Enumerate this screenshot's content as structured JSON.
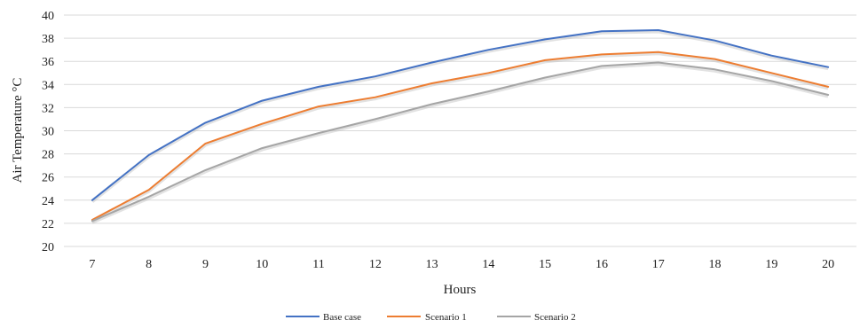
{
  "chart_data": {
    "type": "line",
    "title": "",
    "xlabel": "Hours",
    "ylabel": "Air Temperature °C",
    "x": [
      7,
      8,
      9,
      10,
      11,
      12,
      13,
      14,
      15,
      16,
      17,
      18,
      19,
      20
    ],
    "ylim": [
      20,
      40
    ],
    "yticks": [
      20,
      22,
      24,
      26,
      28,
      30,
      32,
      34,
      36,
      38,
      40
    ],
    "grid": true,
    "legend_position": "bottom",
    "series": [
      {
        "name": "Base case",
        "color": "#4472C4",
        "values": [
          24.0,
          27.9,
          30.7,
          32.6,
          33.8,
          34.7,
          35.9,
          37.0,
          37.9,
          38.6,
          38.7,
          37.8,
          36.5,
          35.5
        ]
      },
      {
        "name": "Scenario 1",
        "color": "#ED7D31",
        "values": [
          22.3,
          24.9,
          28.9,
          30.6,
          32.1,
          32.9,
          34.1,
          35.0,
          36.1,
          36.6,
          36.8,
          36.2,
          35.0,
          33.8
        ]
      },
      {
        "name": "Scenario 2",
        "color": "#A5A5A5",
        "values": [
          22.2,
          24.3,
          26.6,
          28.5,
          29.8,
          31.0,
          32.3,
          33.4,
          34.6,
          35.6,
          35.9,
          35.3,
          34.3,
          33.1
        ]
      }
    ]
  }
}
